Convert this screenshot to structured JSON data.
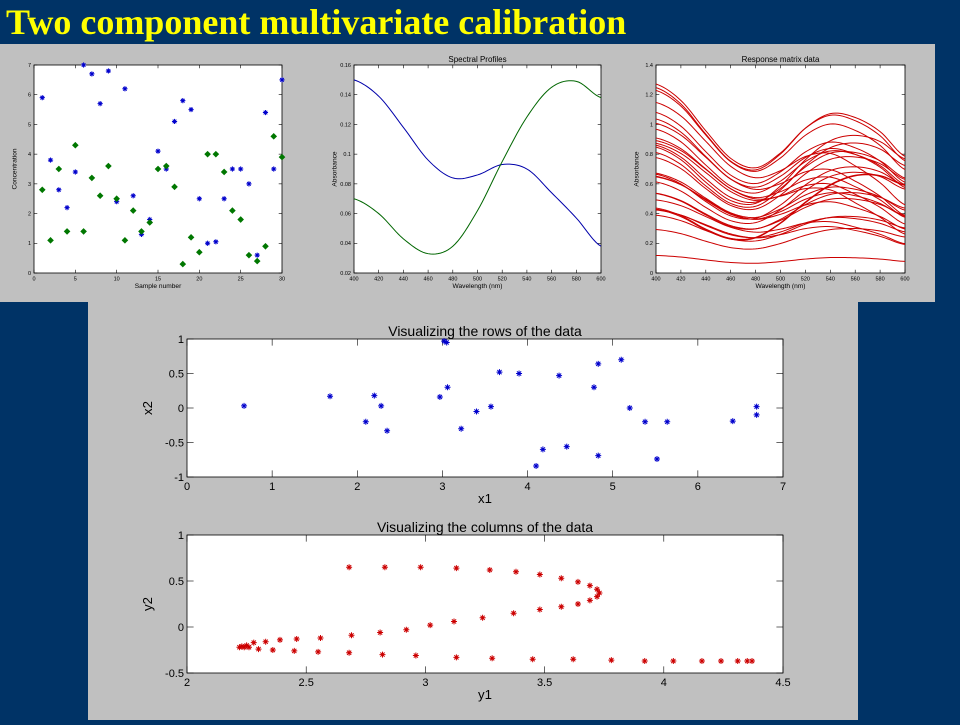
{
  "slide": {
    "title": "Two component multivariate calibration",
    "background": "#003366",
    "title_color": "#ffff00",
    "panel_color": "#c0c0c0"
  },
  "chart_data": [
    {
      "id": "concentrations",
      "type": "scatter",
      "title": "",
      "xlabel": "Sample number",
      "ylabel": "Concentration",
      "xlim": [
        0,
        30
      ],
      "ylim": [
        0,
        7
      ],
      "xticks": [
        0,
        5,
        10,
        15,
        20,
        25,
        30
      ],
      "yticks": [
        0,
        1,
        2,
        3,
        4,
        5,
        6,
        7
      ],
      "series": [
        {
          "marker": "*",
          "color": "#0000cc",
          "x": [
            1,
            2,
            3,
            4,
            5,
            6,
            7,
            8,
            9,
            10,
            11,
            12,
            13,
            14,
            15,
            16,
            17,
            18,
            19,
            20,
            21,
            22,
            23,
            24,
            25,
            26,
            27,
            28,
            29,
            30
          ],
          "y": [
            5.9,
            3.8,
            2.8,
            2.2,
            3.4,
            7.0,
            6.7,
            5.7,
            6.8,
            2.4,
            6.2,
            2.6,
            1.3,
            1.8,
            4.1,
            3.5,
            5.1,
            5.8,
            5.5,
            2.5,
            1.0,
            1.05,
            2.5,
            3.5,
            3.5,
            3.0,
            0.6,
            5.4,
            3.5,
            6.5
          ]
        },
        {
          "marker": "diamond",
          "color": "#007700",
          "x": [
            1,
            2,
            3,
            4,
            5,
            6,
            7,
            8,
            9,
            10,
            11,
            12,
            13,
            14,
            15,
            16,
            17,
            18,
            19,
            20,
            21,
            22,
            23,
            24,
            25,
            26,
            27,
            28,
            29,
            30
          ],
          "y": [
            2.8,
            1.1,
            3.5,
            1.4,
            4.3,
            1.4,
            3.2,
            2.6,
            3.6,
            2.5,
            1.1,
            2.1,
            1.4,
            1.7,
            3.5,
            3.6,
            2.9,
            0.3,
            1.2,
            0.7,
            4.0,
            4.0,
            3.4,
            2.1,
            1.8,
            0.6,
            0.4,
            0.9,
            4.6,
            3.9
          ]
        }
      ]
    },
    {
      "id": "spectral-profiles",
      "type": "line",
      "title": "Spectral Profiles",
      "xlabel": "Wavelength  (nm)",
      "ylabel": "Absorbance",
      "xlim": [
        400,
        600
      ],
      "ylim": [
        0.02,
        0.16
      ],
      "xticks": [
        400,
        420,
        440,
        460,
        480,
        500,
        520,
        540,
        560,
        580,
        600
      ],
      "yticks": [
        0.02,
        0.04,
        0.06,
        0.08,
        0.1,
        0.12,
        0.14,
        0.16
      ],
      "series": [
        {
          "color": "#0000aa",
          "x": [
            400,
            420,
            440,
            460,
            480,
            500,
            520,
            540,
            560,
            580,
            600
          ],
          "y": [
            0.15,
            0.139,
            0.118,
            0.096,
            0.084,
            0.086,
            0.093,
            0.09,
            0.074,
            0.057,
            0.038
          ]
        },
        {
          "color": "#006600",
          "x": [
            400,
            420,
            440,
            460,
            480,
            500,
            520,
            540,
            560,
            580,
            600
          ],
          "y": [
            0.07,
            0.06,
            0.043,
            0.033,
            0.038,
            0.062,
            0.095,
            0.125,
            0.145,
            0.149,
            0.138
          ]
        }
      ]
    },
    {
      "id": "response-matrix",
      "type": "line",
      "title": "Response matrix data",
      "xlabel": "Wavelength  (nm)",
      "ylabel": "Absorbance",
      "xlim": [
        400,
        600
      ],
      "ylim": [
        0,
        1.4
      ],
      "xticks": [
        400,
        420,
        440,
        460,
        480,
        500,
        520,
        540,
        560,
        580,
        600
      ],
      "yticks": [
        0,
        0.2,
        0.4,
        0.6,
        0.8,
        1,
        1.2,
        1.4
      ],
      "color": "#cc0000",
      "wavelengths": [
        400,
        420,
        440,
        460,
        480,
        500,
        520,
        540,
        560,
        580,
        600
      ],
      "profile_a": [
        0.15,
        0.139,
        0.118,
        0.096,
        0.084,
        0.086,
        0.093,
        0.09,
        0.074,
        0.057,
        0.038
      ],
      "profile_b": [
        0.07,
        0.06,
        0.043,
        0.033,
        0.038,
        0.062,
        0.095,
        0.125,
        0.145,
        0.149,
        0.138
      ],
      "mixtures_a": [
        5.9,
        3.8,
        2.8,
        2.2,
        3.4,
        7.0,
        6.7,
        5.7,
        6.8,
        2.4,
        6.2,
        2.6,
        1.3,
        1.8,
        4.1,
        3.5,
        5.1,
        5.8,
        5.5,
        2.5,
        1.0,
        1.05,
        2.5,
        3.5,
        3.5,
        3.0,
        0.6,
        5.4,
        3.5,
        6.5
      ],
      "mixtures_b": [
        2.8,
        1.1,
        3.5,
        1.4,
        4.3,
        1.4,
        3.2,
        2.6,
        3.6,
        2.5,
        1.1,
        2.1,
        1.4,
        1.7,
        3.5,
        3.6,
        2.9,
        0.3,
        1.2,
        0.7,
        4.0,
        4.0,
        3.4,
        2.1,
        1.8,
        0.6,
        0.4,
        0.9,
        4.6,
        3.9
      ]
    },
    {
      "id": "rows",
      "type": "scatter",
      "title": "Visualizing the rows of the data",
      "xlabel": "x1",
      "ylabel": "x2",
      "xlim": [
        0,
        7
      ],
      "ylim": [
        -1,
        1
      ],
      "xticks": [
        0,
        1,
        2,
        3,
        4,
        5,
        6,
        7
      ],
      "yticks": [
        -1,
        -0.5,
        0,
        0.5,
        1
      ],
      "color": "#0000cc",
      "points": [
        [
          0.67,
          0.03
        ],
        [
          1.68,
          0.17
        ],
        [
          2.1,
          -0.2
        ],
        [
          2.2,
          0.18
        ],
        [
          2.28,
          0.03
        ],
        [
          2.35,
          -0.33
        ],
        [
          2.97,
          0.16
        ],
        [
          3.02,
          0.97
        ],
        [
          3.05,
          0.95
        ],
        [
          3.06,
          0.3
        ],
        [
          3.22,
          -0.3
        ],
        [
          3.4,
          -0.05
        ],
        [
          3.57,
          0.02
        ],
        [
          3.67,
          0.52
        ],
        [
          3.9,
          0.5
        ],
        [
          4.1,
          -0.84
        ],
        [
          4.18,
          -0.6
        ],
        [
          4.37,
          0.47
        ],
        [
          4.46,
          -0.56
        ],
        [
          4.78,
          0.3
        ],
        [
          4.83,
          0.64
        ],
        [
          4.83,
          -0.69
        ],
        [
          5.1,
          0.7
        ],
        [
          5.2,
          0.0
        ],
        [
          5.38,
          -0.2
        ],
        [
          5.52,
          -0.74
        ],
        [
          5.64,
          -0.2
        ],
        [
          6.41,
          -0.19
        ],
        [
          6.69,
          0.02
        ],
        [
          6.69,
          -0.1
        ]
      ]
    },
    {
      "id": "columns",
      "type": "scatter",
      "title": "Visualizing the columns of the data",
      "xlabel": "y1",
      "ylabel": "y2",
      "xlim": [
        2,
        4.5
      ],
      "ylim": [
        -0.5,
        1
      ],
      "xticks": [
        2,
        2.5,
        3,
        3.5,
        4,
        4.5
      ],
      "yticks": [
        -0.5,
        0,
        0.5,
        1
      ],
      "color": "#cc0000",
      "points": [
        [
          2.68,
          0.65
        ],
        [
          2.83,
          0.65
        ],
        [
          2.98,
          0.65
        ],
        [
          3.13,
          0.64
        ],
        [
          3.27,
          0.62
        ],
        [
          3.38,
          0.6
        ],
        [
          3.48,
          0.57
        ],
        [
          3.57,
          0.53
        ],
        [
          3.64,
          0.49
        ],
        [
          3.69,
          0.45
        ],
        [
          3.72,
          0.41
        ],
        [
          3.73,
          0.37
        ],
        [
          3.72,
          0.33
        ],
        [
          3.69,
          0.29
        ],
        [
          3.64,
          0.25
        ],
        [
          3.57,
          0.22
        ],
        [
          3.48,
          0.19
        ],
        [
          3.37,
          0.15
        ],
        [
          3.24,
          0.1
        ],
        [
          3.12,
          0.06
        ],
        [
          3.02,
          0.02
        ],
        [
          2.92,
          -0.03
        ],
        [
          2.81,
          -0.06
        ],
        [
          2.69,
          -0.09
        ],
        [
          2.56,
          -0.12
        ],
        [
          2.46,
          -0.13
        ],
        [
          2.39,
          -0.14
        ],
        [
          2.33,
          -0.16
        ],
        [
          2.28,
          -0.17
        ],
        [
          2.25,
          -0.2
        ],
        [
          2.23,
          -0.21
        ],
        [
          2.22,
          -0.22
        ],
        [
          2.24,
          -0.22
        ],
        [
          2.26,
          -0.22
        ],
        [
          2.3,
          -0.24
        ],
        [
          2.36,
          -0.25
        ],
        [
          2.45,
          -0.26
        ],
        [
          2.55,
          -0.27
        ],
        [
          2.68,
          -0.28
        ],
        [
          2.82,
          -0.3
        ],
        [
          2.96,
          -0.31
        ],
        [
          3.13,
          -0.33
        ],
        [
          3.28,
          -0.34
        ],
        [
          3.45,
          -0.35
        ],
        [
          3.62,
          -0.35
        ],
        [
          3.78,
          -0.36
        ],
        [
          3.92,
          -0.37
        ],
        [
          4.04,
          -0.37
        ],
        [
          4.16,
          -0.37
        ],
        [
          4.24,
          -0.37
        ],
        [
          4.31,
          -0.37
        ],
        [
          4.35,
          -0.37
        ],
        [
          4.37,
          -0.37
        ]
      ]
    }
  ]
}
